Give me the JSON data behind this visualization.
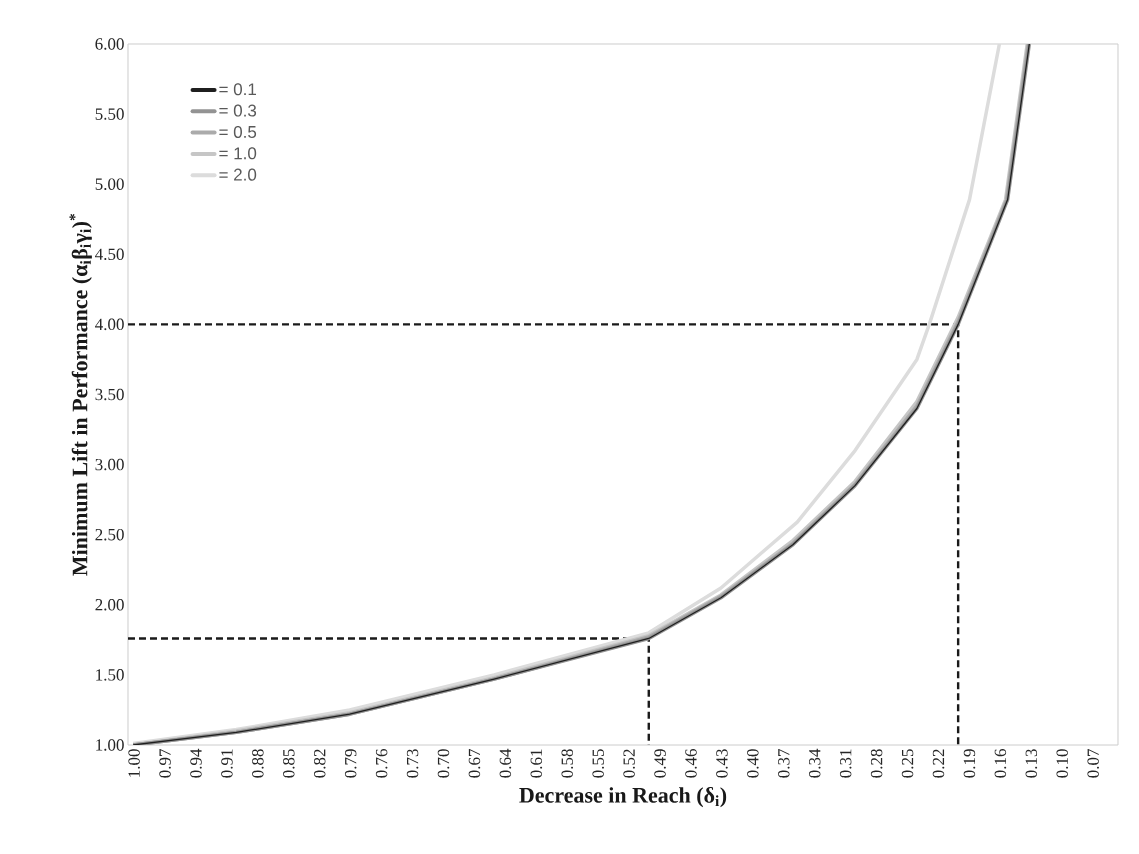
{
  "chart_data": {
    "type": "line",
    "xlabel": "Decrease in Reach (δ$_{i}$)",
    "ylabel": "Minimum Lift in Performance (α$_{i}$β$_{i}$γ$_{i}$)$^{*}$",
    "xlim": [
      1.005,
      0.045
    ],
    "ylim": [
      1,
      6
    ],
    "xticks": [
      {
        "value": 1.0,
        "label": "1.00"
      },
      {
        "value": 0.97,
        "label": "0.97"
      },
      {
        "value": 0.94,
        "label": "0.94"
      },
      {
        "value": 0.91,
        "label": "0.91"
      },
      {
        "value": 0.88,
        "label": "0.88"
      },
      {
        "value": 0.85,
        "label": "0.85"
      },
      {
        "value": 0.82,
        "label": "0.82"
      },
      {
        "value": 0.79,
        "label": "0.79"
      },
      {
        "value": 0.76,
        "label": "0.76"
      },
      {
        "value": 0.73,
        "label": "0.73"
      },
      {
        "value": 0.7,
        "label": "0.70"
      },
      {
        "value": 0.67,
        "label": "0.67"
      },
      {
        "value": 0.64,
        "label": "0.64"
      },
      {
        "value": 0.61,
        "label": "0.61"
      },
      {
        "value": 0.58,
        "label": "0.58"
      },
      {
        "value": 0.55,
        "label": "0.55"
      },
      {
        "value": 0.52,
        "label": "0.52"
      },
      {
        "value": 0.49,
        "label": "0.49"
      },
      {
        "value": 0.46,
        "label": "0.46"
      },
      {
        "value": 0.43,
        "label": "0.43"
      },
      {
        "value": 0.4,
        "label": "0.40"
      },
      {
        "value": 0.37,
        "label": "0.37"
      },
      {
        "value": 0.34,
        "label": "0.34"
      },
      {
        "value": 0.31,
        "label": "0.31"
      },
      {
        "value": 0.28,
        "label": "0.28"
      },
      {
        "value": 0.25,
        "label": "0.25"
      },
      {
        "value": 0.22,
        "label": "0.22"
      },
      {
        "value": 0.19,
        "label": "0.19"
      },
      {
        "value": 0.16,
        "label": "0.16"
      },
      {
        "value": 0.13,
        "label": "0.13"
      },
      {
        "value": 0.1,
        "label": "0.10"
      },
      {
        "value": 0.07,
        "label": "0.07"
      }
    ],
    "yticks": [
      {
        "value": 1,
        "label": "1.00"
      },
      {
        "value": 1.5,
        "label": "1.50"
      },
      {
        "value": 2,
        "label": "2.00"
      },
      {
        "value": 2.5,
        "label": "2.50"
      },
      {
        "value": 3,
        "label": "3.00"
      },
      {
        "value": 3.5,
        "label": "3.50"
      },
      {
        "value": 4,
        "label": "4.00"
      },
      {
        "value": 4.5,
        "label": "4.50"
      },
      {
        "value": 5,
        "label": "5.00"
      },
      {
        "value": 5.5,
        "label": "5.50"
      },
      {
        "value": 6,
        "label": "6.00"
      }
    ],
    "legend": "top left",
    "marker": "none",
    "grid": false,
    "line_style": "solid",
    "series": [
      {
        "name": "= 0.1",
        "color": "#1f1f1f",
        "x": [
          1.0,
          0.9,
          0.79,
          0.65,
          0.5,
          0.43,
          0.36,
          0.3,
          0.24,
          0.2,
          0.152,
          0.131
        ],
        "values": [
          1.0,
          1.09,
          1.22,
          1.47,
          1.76,
          2.05,
          2.43,
          2.85,
          3.4,
          4.0,
          4.89,
          6.0
        ]
      },
      {
        "name": "= 0.3",
        "color": "#939393",
        "x": [
          1.0,
          0.9,
          0.79,
          0.65,
          0.5,
          0.43,
          0.36,
          0.3,
          0.24,
          0.2,
          0.152,
          0.131
        ],
        "values": [
          1.0,
          1.09,
          1.22,
          1.47,
          1.76,
          2.05,
          2.43,
          2.85,
          3.4,
          4.0,
          4.89,
          6.0
        ]
      },
      {
        "name": "= 0.5",
        "color": "#ababab",
        "x": [
          1.0,
          0.9,
          0.79,
          0.65,
          0.5,
          0.43,
          0.36,
          0.3,
          0.24,
          0.2,
          0.153,
          0.132
        ],
        "values": [
          1.0,
          1.09,
          1.22,
          1.47,
          1.77,
          2.06,
          2.44,
          2.86,
          3.42,
          4.02,
          4.89,
          6.0
        ]
      },
      {
        "name": "= 1.0",
        "color": "#c6c6c6",
        "x": [
          1.0,
          0.9,
          0.79,
          0.65,
          0.5,
          0.43,
          0.36,
          0.3,
          0.24,
          0.2,
          0.154,
          0.133
        ],
        "values": [
          1.0,
          1.1,
          1.23,
          1.48,
          1.78,
          2.07,
          2.46,
          2.88,
          3.45,
          4.05,
          4.89,
          6.0
        ]
      },
      {
        "name": "= 2.0",
        "color": "#dcdcdc",
        "x": [
          1.0,
          0.9,
          0.79,
          0.65,
          0.5,
          0.43,
          0.356,
          0.3,
          0.24,
          0.228,
          0.189,
          0.16
        ],
        "values": [
          1.01,
          1.11,
          1.25,
          1.5,
          1.8,
          2.12,
          2.59,
          3.1,
          3.75,
          4.0,
          4.89,
          6.0
        ]
      },
      {
        "type": "line",
        "color": "#1a1a1a",
        "line_style": "dashed",
        "x": [
          1.005,
          0.5,
          0.5
        ],
        "values": [
          1.76,
          1.76,
          1.0
        ]
      },
      {
        "type": "line",
        "color": "#1a1a1a",
        "line_style": "dashed",
        "x": [
          1.005,
          0.2,
          0.2
        ],
        "values": [
          4.0,
          4.0,
          1.0
        ]
      }
    ]
  }
}
